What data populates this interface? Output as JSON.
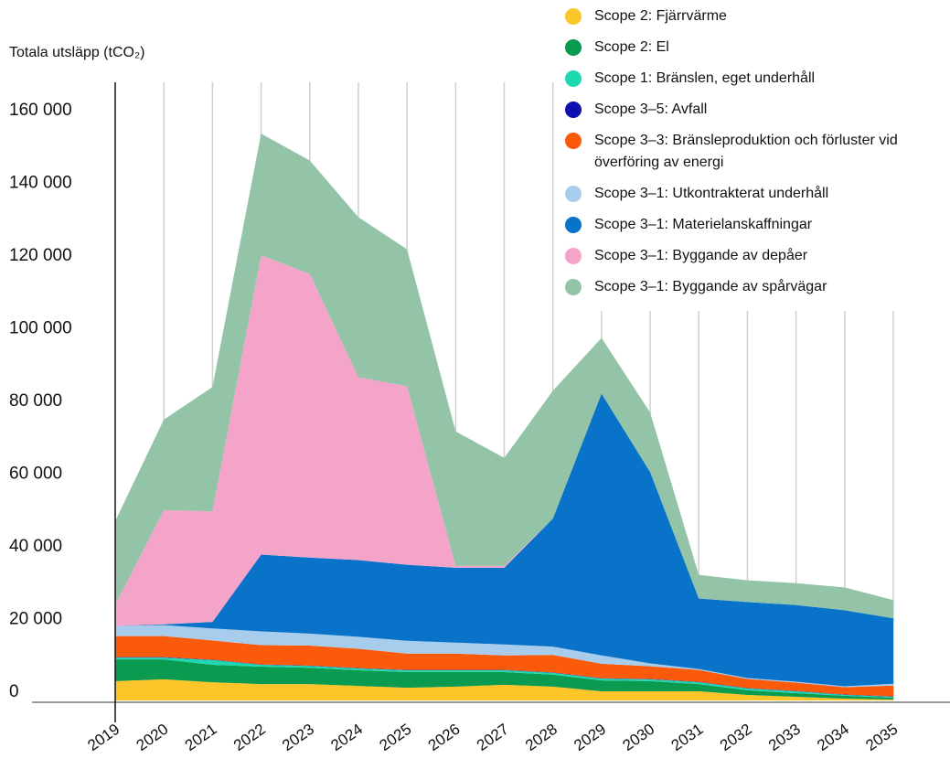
{
  "chart_data": {
    "type": "stacked_area",
    "y_label": "Totala utsläpp (tCO₂)",
    "categories": [
      "2019",
      "2020",
      "2021",
      "2022",
      "2023",
      "2024",
      "2025",
      "2026",
      "2027",
      "2028",
      "2029",
      "2030",
      "2031",
      "2032",
      "2033",
      "2034",
      "2035"
    ],
    "ylim": [
      0,
      170000
    ],
    "yticks": [
      {
        "value": 0,
        "label": "0"
      },
      {
        "value": 20000,
        "label": "20 000"
      },
      {
        "value": 40000,
        "label": "40 000"
      },
      {
        "value": 60000,
        "label": "60 000"
      },
      {
        "value": 80000,
        "label": "80 000"
      },
      {
        "value": 100000,
        "label": "100 000"
      },
      {
        "value": 120000,
        "label": "120 000"
      },
      {
        "value": 140000,
        "label": "140 000"
      },
      {
        "value": 160000,
        "label": "160 000"
      }
    ],
    "series": [
      {
        "name": "Scope 2: Fjärrvärme",
        "color": "#fcc52a",
        "values": [
          5300,
          5800,
          5000,
          4500,
          4500,
          4000,
          3500,
          3800,
          4300,
          3800,
          2500,
          2500,
          2500,
          1500,
          1000,
          500,
          250
        ]
      },
      {
        "name": "Scope 2: El",
        "color": "#0a9a50",
        "values": [
          6000,
          5500,
          4800,
          4800,
          4500,
          4300,
          4300,
          4000,
          3500,
          3300,
          3000,
          2800,
          2000,
          1300,
          1000,
          800,
          500
        ]
      },
      {
        "name": "Scope 1: Bränslen, eget underhåll",
        "color": "#1ed8b0",
        "values": [
          500,
          500,
          1300,
          500,
          500,
          500,
          500,
          500,
          500,
          500,
          500,
          500,
          500,
          500,
          500,
          250,
          250
        ]
      },
      {
        "name": "Scope 3–5: Avfall",
        "color": "#1010b0",
        "values": [
          100,
          100,
          100,
          100,
          100,
          100,
          100,
          100,
          100,
          100,
          100,
          100,
          100,
          100,
          100,
          100,
          100
        ]
      },
      {
        "name": "Scope 3–3: Bränsleproduktion och förluster vid överföring av energi",
        "color": "#fa5a0a",
        "values": [
          5800,
          5800,
          5300,
          5300,
          5500,
          5300,
          4500,
          4500,
          4000,
          4800,
          4000,
          3500,
          3300,
          2500,
          2300,
          2000,
          3000
        ]
      },
      {
        "name": "Scope 3–1: Utkontrakterat underhåll",
        "color": "#a8cdec",
        "values": [
          2800,
          3000,
          3300,
          3800,
          3300,
          3300,
          3500,
          3000,
          3000,
          2300,
          2300,
          800,
          250,
          250,
          250,
          250,
          500
        ]
      },
      {
        "name": "Scope 3–1: Materielanskaffningar",
        "color": "#0873c8",
        "values": [
          0,
          250,
          1800,
          21100,
          20900,
          21100,
          20900,
          20600,
          21100,
          35200,
          72000,
          52600,
          19400,
          20900,
          21100,
          20900,
          18000
        ]
      },
      {
        "name": "Scope 3–1: Byggande av depåer",
        "color": "#f4a4c8",
        "values": [
          5800,
          31400,
          30400,
          82300,
          78000,
          50300,
          49100,
          500,
          500,
          0,
          0,
          0,
          0,
          0,
          0,
          0,
          0
        ]
      },
      {
        "name": "Scope 3–1: Byggande av spårvägar",
        "color": "#94c4a8",
        "values": [
          23000,
          24900,
          34200,
          33500,
          31200,
          44000,
          37700,
          37000,
          29700,
          35200,
          15300,
          16400,
          6500,
          6000,
          6000,
          6300,
          5000
        ]
      }
    ]
  }
}
